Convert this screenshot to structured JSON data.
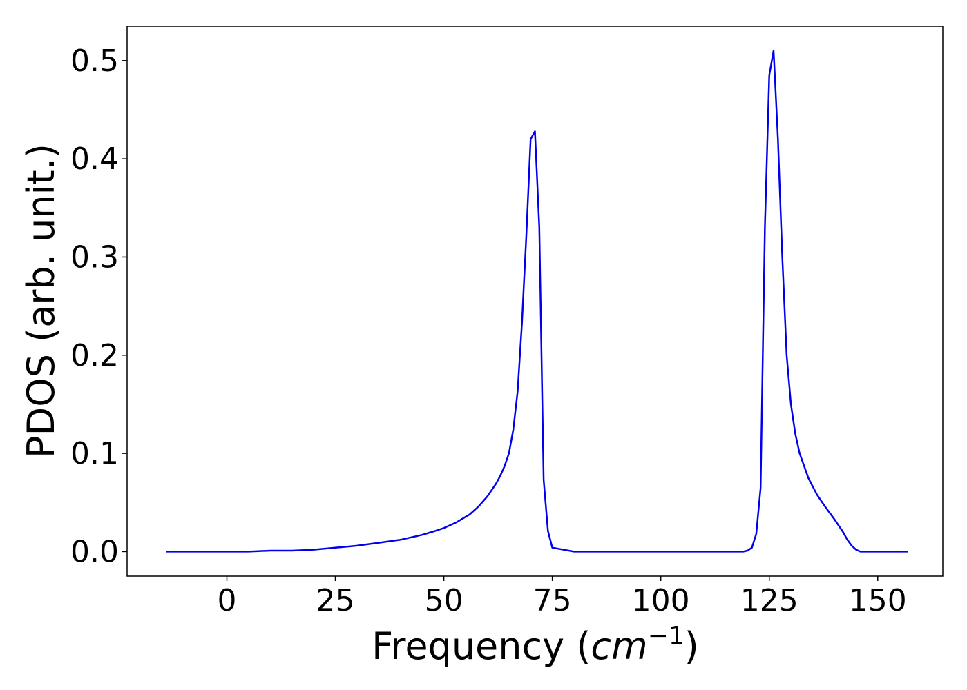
{
  "chart_data": {
    "type": "line",
    "xlabel": "Frequency (cm⁻¹)",
    "xlabel_text": "Frequency (",
    "xlabel_unit_base": "cm",
    "xlabel_unit_exp": "−1",
    "xlabel_close": ")",
    "ylabel": "PDOS (arb. unit.)",
    "xlim": [
      -23,
      165
    ],
    "ylim": [
      -0.025,
      0.535
    ],
    "xticks": [
      0,
      25,
      50,
      75,
      100,
      125,
      150
    ],
    "yticks": [
      0.0,
      0.1,
      0.2,
      0.3,
      0.4,
      0.5
    ],
    "xtick_labels": [
      "0",
      "25",
      "50",
      "75",
      "100",
      "125",
      "150"
    ],
    "ytick_labels": [
      "0.0",
      "0.1",
      "0.2",
      "0.3",
      "0.4",
      "0.5"
    ],
    "grid": false,
    "legend": "none",
    "series": [
      {
        "color": "#0000ee",
        "x": [
          -14,
          0,
          5,
          10,
          15,
          20,
          25,
          30,
          35,
          40,
          45,
          48,
          50,
          53,
          56,
          58,
          60,
          62,
          63,
          64,
          65,
          66,
          67,
          68,
          69,
          70,
          71,
          72,
          73,
          74,
          75,
          80,
          90,
          100,
          110,
          119,
          120,
          121,
          122,
          123,
          124,
          125,
          126,
          127,
          128,
          129,
          130,
          131,
          132,
          134,
          136,
          138,
          140,
          142,
          143,
          144,
          145,
          146,
          150,
          157
        ],
        "y": [
          0.0,
          0.0,
          0.0,
          0.001,
          0.001,
          0.002,
          0.004,
          0.006,
          0.009,
          0.012,
          0.017,
          0.021,
          0.024,
          0.03,
          0.038,
          0.046,
          0.056,
          0.069,
          0.077,
          0.087,
          0.1,
          0.124,
          0.163,
          0.233,
          0.32,
          0.42,
          0.428,
          0.33,
          0.073,
          0.021,
          0.004,
          0.0,
          0.0,
          0.0,
          0.0,
          0.0,
          0.001,
          0.004,
          0.018,
          0.065,
          0.33,
          0.485,
          0.51,
          0.42,
          0.3,
          0.2,
          0.15,
          0.12,
          0.1,
          0.075,
          0.058,
          0.045,
          0.033,
          0.02,
          0.012,
          0.006,
          0.002,
          0.0,
          0.0,
          0.0
        ]
      }
    ]
  }
}
